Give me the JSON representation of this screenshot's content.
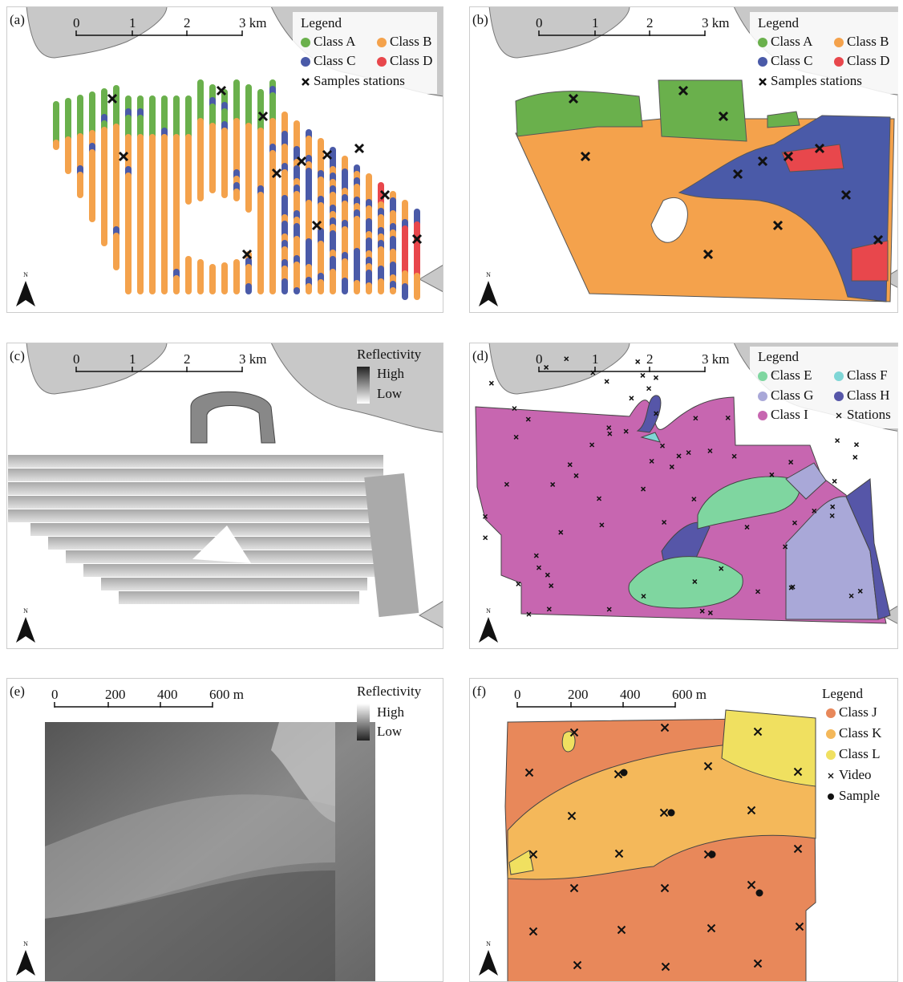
{
  "north": "N",
  "panels": [
    {
      "label": "(a)",
      "scale": [
        "0",
        "1",
        "2",
        "3 km"
      ],
      "legend": {
        "title": "Legend",
        "items": [
          "Class A",
          "Class B",
          "Class C",
          "Class D",
          "Samples stations"
        ]
      }
    },
    {
      "label": "(b)",
      "scale": [
        "0",
        "1",
        "2",
        "3 km"
      ],
      "legend": {
        "title": "Legend",
        "items": [
          "Class A",
          "Class B",
          "Class C",
          "Class D",
          "Samples stations"
        ]
      }
    },
    {
      "label": "(c)",
      "scale": [
        "0",
        "1",
        "2",
        "3 km"
      ],
      "legend": {
        "title": "Reflectivity",
        "items": [
          "High",
          "Low"
        ]
      }
    },
    {
      "label": "(d)",
      "scale": [
        "0",
        "1",
        "2",
        "3 km"
      ],
      "legend": {
        "title": "Legend",
        "items": [
          "Class E",
          "Class F",
          "Class G",
          "Class H",
          "Class I",
          "Stations"
        ]
      }
    },
    {
      "label": "(e)",
      "scale": [
        "0",
        "200",
        "400",
        "600 m"
      ],
      "legend": {
        "title": "Reflectivity",
        "items": [
          "High",
          "Low"
        ]
      }
    },
    {
      "label": "(f)",
      "scale": [
        "0",
        "200",
        "400",
        "600 m"
      ],
      "legend": {
        "title": "Legend",
        "items": [
          "Class J",
          "Class K",
          "Class L",
          "Video",
          "Sample"
        ]
      }
    }
  ]
}
